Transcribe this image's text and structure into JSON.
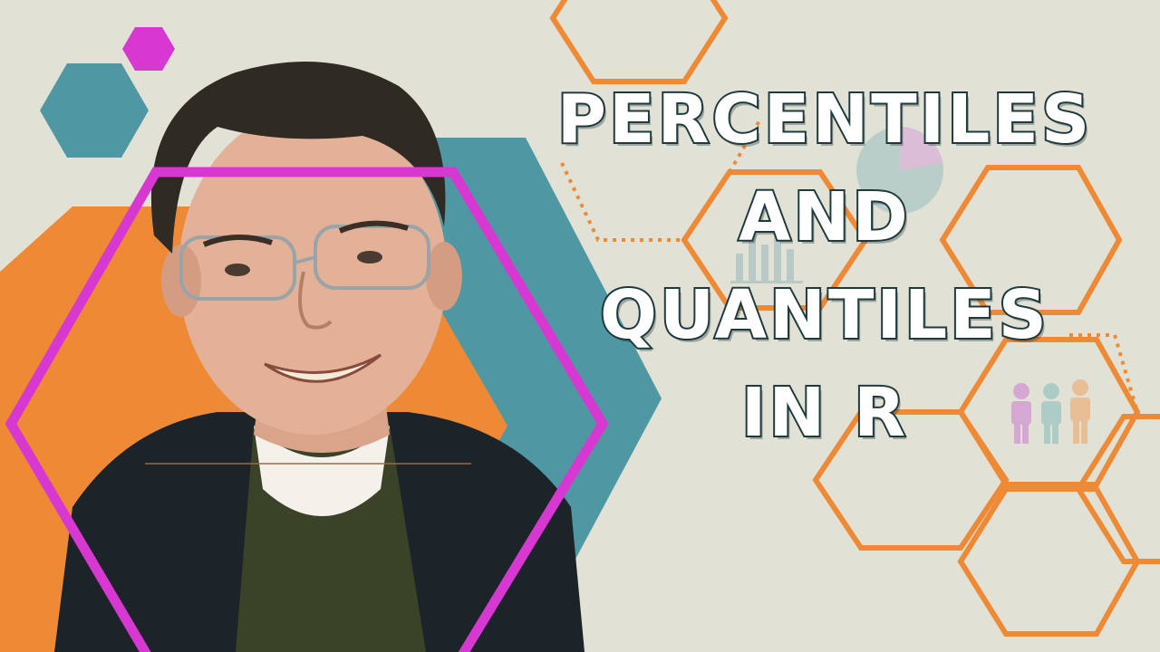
{
  "title": {
    "lines": [
      "PERCENTILES",
      "AND",
      "QUANTILES",
      "IN R"
    ]
  },
  "colors": {
    "background": "#e2e1d6",
    "orange": "#ee8a35",
    "teal": "#4f98a3",
    "magenta": "#d838d2",
    "title_fill": "#ffffff",
    "title_outline": "#1f3a3d"
  },
  "icons": [
    "pie-chart-icon",
    "bar-chart-icon",
    "people-icon"
  ],
  "photo": {
    "subject": "presenter-portrait"
  }
}
